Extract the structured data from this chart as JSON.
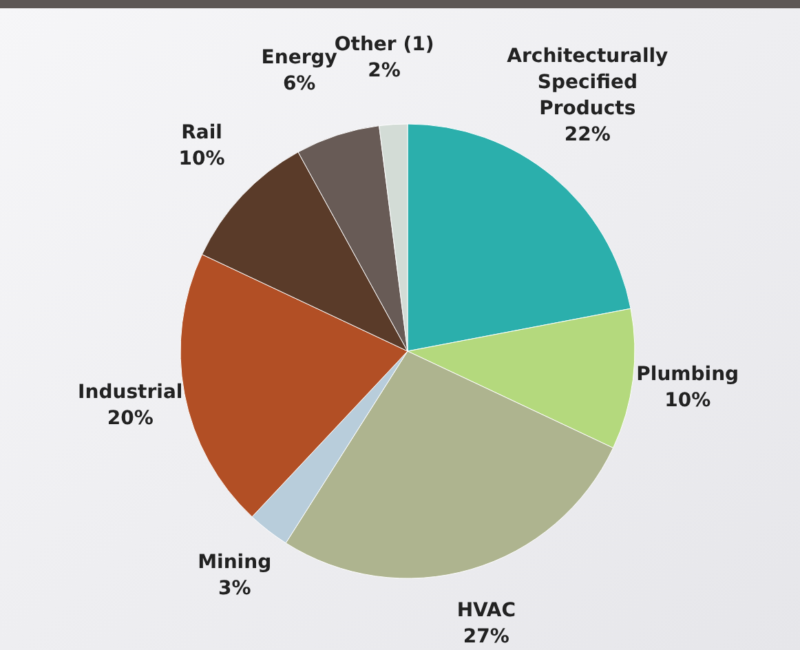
{
  "chart_data": {
    "type": "pie",
    "categories": [
      "Architecturally Specified Products",
      "Plumbing",
      "HVAC",
      "Mining",
      "Industrial",
      "Rail",
      "Energy",
      "Other (1)"
    ],
    "values": [
      22,
      10,
      27,
      3,
      20,
      10,
      6,
      2
    ],
    "colors": [
      "#2bafac",
      "#b4d97d",
      "#aeb48f",
      "#b8cddb",
      "#b24f25",
      "#5a3b29",
      "#685b56",
      "#d3dcd6"
    ],
    "value_labels": [
      "22%",
      "10%",
      "27%",
      "3%",
      "20%",
      "10%",
      "6%",
      "2%"
    ],
    "legend": false
  }
}
